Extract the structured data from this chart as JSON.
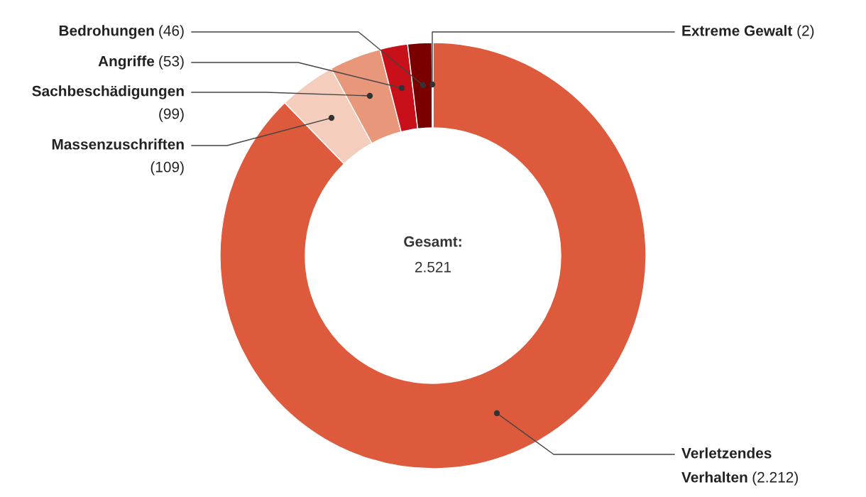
{
  "chart_data": {
    "type": "donut",
    "categories": [
      "Verletzendes Verhalten",
      "Massenzuschriften",
      "Sachbeschädigungen",
      "Angriffe",
      "Bedrohungen",
      "Extreme Gewalt"
    ],
    "values": [
      2212,
      109,
      99,
      53,
      46,
      2
    ],
    "value_labels": [
      "(2.212)",
      "(109)",
      "(99)",
      "(53)",
      "(46)",
      "(2)"
    ],
    "colors": [
      "#dd5a3c",
      "#f4cdbd",
      "#e8977b",
      "#c8101a",
      "#7a0000",
      "#f0b8a0"
    ],
    "annotations": [
      "Gesamt:",
      "2.521"
    ],
    "legend": false
  }
}
